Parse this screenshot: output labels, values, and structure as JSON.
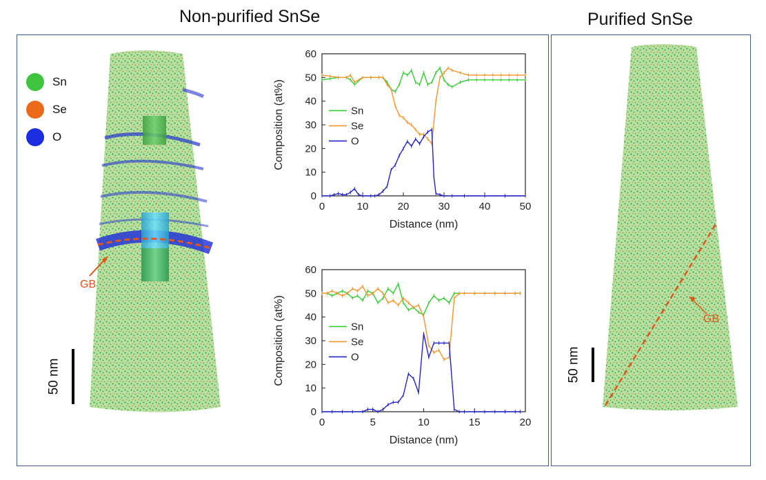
{
  "titles": {
    "left": "Non-purified SnSe",
    "right": "Purified SnSe"
  },
  "left_panel": {
    "legend": [
      {
        "label": "Sn",
        "color": "#3ec43e"
      },
      {
        "label": "Se",
        "color": "#ea6a1a"
      },
      {
        "label": "O",
        "color": "#1a2ee0"
      }
    ],
    "gb_label": "GB",
    "scale_label": "50 nm"
  },
  "right_panel": {
    "gb_label": "GB",
    "scale_label": "50 nm"
  },
  "colors": {
    "Sn": "#33cc33",
    "Se": "#f5952a",
    "O": "#2323c8",
    "frame": "#3a5a8c",
    "gb": "#e0561a"
  },
  "chart_data": [
    {
      "type": "line",
      "xlabel": "Distance (nm)",
      "ylabel": "Composition (at%)",
      "xlim": [
        0,
        50
      ],
      "ylim": [
        0,
        60
      ],
      "xticks": [
        0,
        10,
        20,
        30,
        40,
        50
      ],
      "yticks": [
        0,
        10,
        20,
        30,
        40,
        50,
        60
      ],
      "legend_position": "center-left",
      "series": [
        {
          "name": "Sn",
          "color": "#33cc33",
          "x": [
            0,
            2,
            4,
            6,
            7,
            8,
            10,
            12,
            14,
            15,
            16,
            17,
            18,
            19,
            20,
            21,
            22,
            23,
            24,
            25,
            26,
            27,
            28,
            29,
            30,
            31,
            32,
            34,
            36,
            38,
            40,
            42,
            44,
            46,
            48,
            50
          ],
          "y": [
            49,
            49.5,
            50,
            50,
            49,
            47,
            50,
            50,
            50,
            50,
            48,
            45,
            44,
            47,
            52,
            51,
            53,
            48,
            47,
            52,
            47,
            48,
            52,
            54,
            49,
            47,
            46,
            48,
            49,
            49,
            49,
            49,
            49,
            49,
            49,
            49
          ]
        },
        {
          "name": "Se",
          "color": "#f5952a",
          "x": [
            0,
            2,
            4,
            6,
            7,
            8,
            10,
            12,
            14,
            15,
            16,
            17,
            18,
            19,
            20,
            21,
            22,
            23,
            24,
            25,
            26,
            27,
            28,
            29,
            30,
            31,
            32,
            34,
            36,
            38,
            40,
            42,
            44,
            46,
            48,
            50
          ],
          "y": [
            51,
            50.5,
            50,
            50,
            51,
            48,
            50,
            50,
            50,
            50,
            47,
            45,
            38,
            34,
            33,
            31,
            30,
            28,
            26,
            26,
            24,
            22,
            40,
            50,
            52,
            54,
            53,
            52,
            51,
            51,
            51,
            51,
            51,
            51,
            51,
            51
          ]
        },
        {
          "name": "O",
          "color": "#2323c8",
          "x": [
            0,
            2,
            3,
            4,
            5,
            6,
            7,
            8,
            9,
            10,
            12,
            13,
            14,
            15,
            16,
            17,
            18,
            19,
            20,
            21,
            22,
            23,
            24,
            25,
            26,
            27,
            27.5,
            28,
            29,
            30,
            32,
            35,
            40,
            45,
            50
          ],
          "y": [
            0,
            0,
            0.5,
            1,
            0.5,
            0.5,
            1.5,
            3,
            0.5,
            0,
            0,
            0,
            0.5,
            2,
            4,
            11,
            13,
            17,
            20,
            23,
            21,
            24,
            22,
            25,
            27,
            28,
            8,
            1,
            0.5,
            0,
            0,
            0,
            0,
            0,
            0
          ]
        }
      ]
    },
    {
      "type": "line",
      "xlabel": "Distance (nm)",
      "ylabel": "Composition (at%)",
      "xlim": [
        0,
        20
      ],
      "ylim": [
        0,
        60
      ],
      "xticks": [
        0,
        5,
        10,
        15,
        20
      ],
      "yticks": [
        0,
        10,
        20,
        30,
        40,
        50,
        60
      ],
      "legend_position": "center-left",
      "series": [
        {
          "name": "Sn",
          "color": "#33cc33",
          "x": [
            0,
            0.5,
            1,
            1.5,
            2,
            2.5,
            3,
            3.5,
            4,
            4.5,
            5,
            5.5,
            6,
            6.5,
            7,
            7.5,
            8,
            8.5,
            9,
            9.5,
            10,
            10.5,
            11,
            11.5,
            12,
            12.5,
            13,
            13.5,
            14,
            15,
            16,
            17,
            18,
            19,
            19.5
          ],
          "y": [
            50,
            50,
            49,
            50,
            51,
            50,
            48,
            49,
            47,
            51,
            50,
            46,
            48,
            52,
            50,
            54,
            46,
            43,
            44,
            42,
            41,
            46,
            49,
            47,
            48,
            46,
            50,
            50,
            50,
            50,
            50,
            50,
            50,
            50,
            50
          ]
        },
        {
          "name": "Se",
          "color": "#f5952a",
          "x": [
            0,
            0.5,
            1,
            1.5,
            2,
            2.5,
            3,
            3.5,
            4,
            4.5,
            5,
            5.5,
            6,
            6.5,
            7,
            7.5,
            8,
            8.5,
            9,
            9.5,
            10,
            10.5,
            11,
            11.5,
            12,
            12.5,
            13,
            13.5,
            14,
            15,
            16,
            17,
            18,
            19,
            19.5
          ],
          "y": [
            50,
            50,
            51,
            50,
            49,
            50,
            52,
            51,
            53,
            49,
            50,
            52,
            50,
            46,
            47,
            45,
            48,
            46,
            44,
            45,
            40,
            28,
            25,
            26,
            22,
            23,
            48,
            50,
            50,
            50,
            50,
            50,
            50,
            50,
            50
          ]
        },
        {
          "name": "O",
          "color": "#2323c8",
          "x": [
            0,
            1,
            2,
            3,
            4,
            4.5,
            5,
            5.5,
            6,
            6.5,
            7,
            7.5,
            8,
            8.5,
            9,
            9.5,
            10,
            10.5,
            11,
            11.5,
            12,
            12.5,
            13,
            13.5,
            14,
            15,
            16,
            17,
            18,
            19,
            19.5
          ],
          "y": [
            0,
            0,
            0,
            0,
            0,
            1,
            1,
            0,
            1,
            3,
            4,
            4,
            7,
            16,
            14,
            8,
            33,
            23,
            29,
            29,
            29,
            29,
            1,
            0,
            0,
            0,
            0,
            0,
            0,
            0,
            0
          ]
        }
      ]
    }
  ]
}
